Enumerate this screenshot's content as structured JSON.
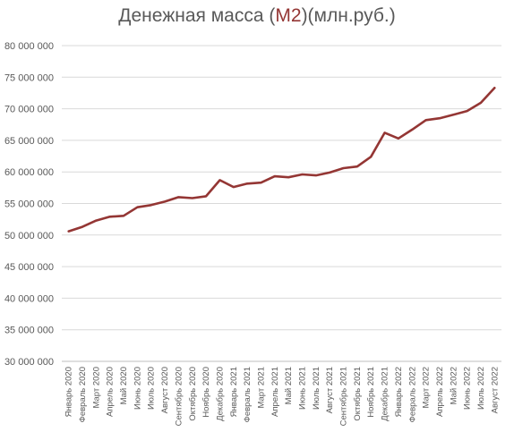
{
  "chart_data": {
    "type": "line",
    "title_parts": [
      "Денежная масса (",
      "М2",
      ")(млн.руб.)"
    ],
    "series_color": "#943634",
    "title_highlight_color": "#943634",
    "grid": true,
    "legend": "none",
    "ylim": [
      30000000,
      80000000
    ],
    "yticks": [
      "30 000 000",
      "35 000 000",
      "40 000 000",
      "45 000 000",
      "50 000 000",
      "55 000 000",
      "60 000 000",
      "65 000 000",
      "70 000 000",
      "75 000 000",
      "80 000 000"
    ],
    "categories": [
      "Январь 2020",
      "Февраль 2020",
      "Март 2020",
      "Апрель 2020",
      "Май 2020",
      "Июнь 2020",
      "Июль 2020",
      "Август 2020",
      "Сентябрь 2020",
      "Октябрь 2020",
      "Ноябрь 2020",
      "Декабрь 2020",
      "Январь 2021",
      "Февраль 2021",
      "Март 2021",
      "Апрель 2021",
      "Май 2021",
      "Июнь 2021",
      "Июль 2021",
      "Август 2021",
      "Сентябрь 2021",
      "Октябрь 2021",
      "Ноябрь 2021",
      "Декабрь 2021",
      "Январь 2022",
      "Февраль 2022",
      "Март 2022",
      "Апрель 2022",
      "Май 2022",
      "Июнь 2022",
      "Июль 2022",
      "Август 2022"
    ],
    "values": [
      50600000,
      51300000,
      52300000,
      52900000,
      53050000,
      54400000,
      54750000,
      55300000,
      56000000,
      55850000,
      56150000,
      58700000,
      57600000,
      58150000,
      58300000,
      59300000,
      59150000,
      59600000,
      59450000,
      59900000,
      60600000,
      60850000,
      62400000,
      66200000,
      65300000,
      66700000,
      68200000,
      68500000,
      69050000,
      69650000,
      70950000,
      73300000
    ]
  }
}
